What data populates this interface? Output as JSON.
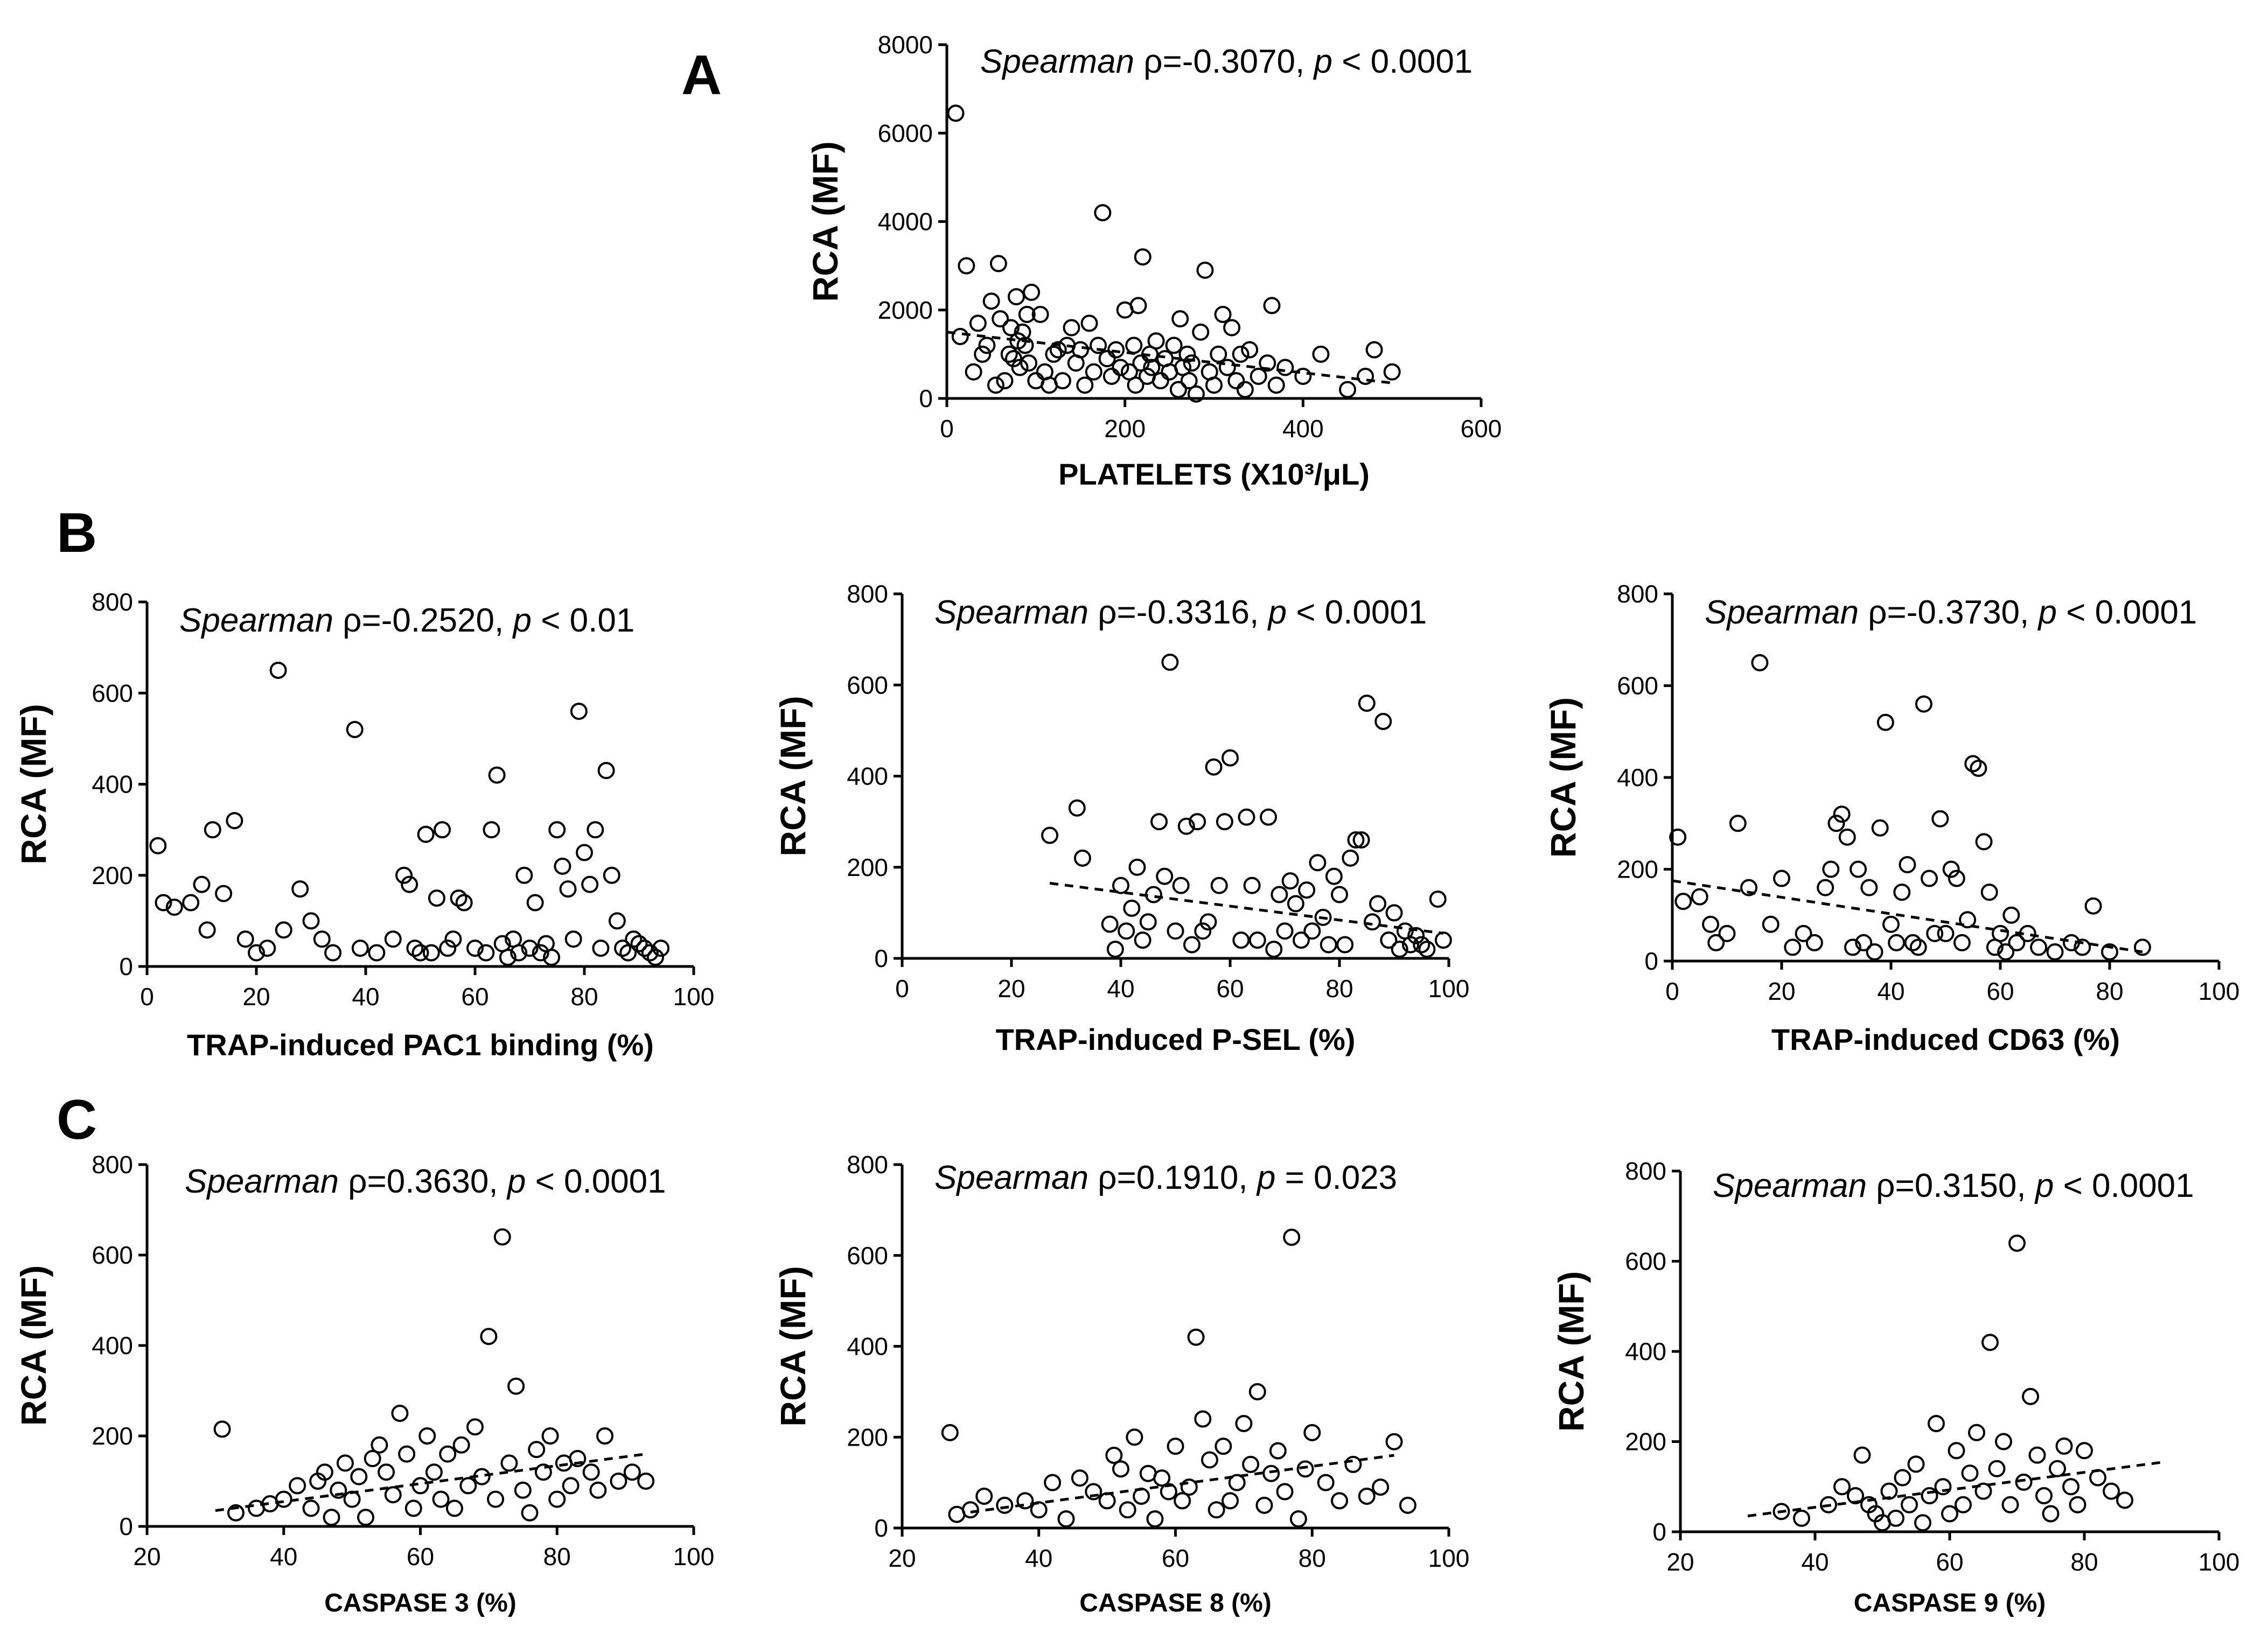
{
  "panel_labels": [
    "A",
    "B",
    "C"
  ],
  "chart_data": [
    {
      "type": "scatter",
      "title": "",
      "xlabel": "PLATELETS (X10³/μL)",
      "ylabel": "RCA (MF)",
      "xlim": [
        0,
        600
      ],
      "ylim": [
        0,
        8000
      ],
      "xticks": [
        0,
        200,
        400,
        600
      ],
      "yticks": [
        0,
        2000,
        4000,
        6000,
        8000
      ],
      "stat": {
        "method": "Spearman",
        "rho": "ρ=-0.3070",
        "sep": ", ",
        "p_label": "p",
        "p_value": " < 0.0001"
      },
      "trend": {
        "x": [
          0,
          500
        ],
        "y": [
          1500,
          350
        ]
      },
      "x": [
        10,
        15,
        22,
        30,
        35,
        40,
        45,
        50,
        55,
        58,
        60,
        65,
        70,
        72,
        75,
        78,
        80,
        82,
        85,
        88,
        90,
        92,
        95,
        100,
        105,
        110,
        115,
        120,
        125,
        130,
        135,
        140,
        145,
        150,
        155,
        160,
        165,
        170,
        175,
        180,
        185,
        190,
        195,
        200,
        205,
        210,
        212,
        215,
        218,
        220,
        225,
        228,
        230,
        235,
        240,
        245,
        250,
        255,
        260,
        262,
        265,
        270,
        272,
        275,
        280,
        285,
        290,
        295,
        300,
        305,
        310,
        315,
        320,
        325,
        330,
        335,
        340,
        350,
        360,
        365,
        370,
        380,
        400,
        420,
        450,
        470,
        480,
        500
      ],
      "y": [
        6450,
        1400,
        3000,
        600,
        1700,
        1000,
        1200,
        2200,
        300,
        3050,
        1800,
        400,
        1000,
        1600,
        900,
        2300,
        1300,
        700,
        1500,
        1200,
        1900,
        800,
        2400,
        400,
        1900,
        600,
        300,
        1000,
        1100,
        400,
        1200,
        1600,
        800,
        1100,
        300,
        1700,
        600,
        1200,
        4200,
        900,
        500,
        1100,
        700,
        2000,
        600,
        1200,
        300,
        2100,
        800,
        3200,
        500,
        1000,
        700,
        1300,
        400,
        900,
        600,
        1200,
        200,
        1800,
        700,
        1000,
        400,
        800,
        100,
        1500,
        2900,
        600,
        300,
        1000,
        1900,
        700,
        1600,
        400,
        1000,
        200,
        1100,
        500,
        800,
        2100,
        300,
        700,
        500,
        1000,
        200,
        500,
        1100,
        600
      ]
    },
    {
      "type": "scatter",
      "title": "",
      "xlabel": "TRAP-induced PAC1 binding (%)",
      "ylabel": "RCA (MF)",
      "xlim": [
        0,
        100
      ],
      "ylim": [
        0,
        800
      ],
      "xticks": [
        0,
        20,
        40,
        60,
        80,
        100
      ],
      "yticks": [
        0,
        200,
        400,
        600,
        800
      ],
      "stat": {
        "method": "Spearman",
        "rho": "ρ=-0.2520",
        "sep": ", ",
        "p_label": "p",
        "p_value": " < 0.01"
      },
      "trend": null,
      "x": [
        2,
        3,
        5,
        8,
        10,
        11,
        12,
        14,
        16,
        18,
        20,
        22,
        24,
        25,
        28,
        30,
        32,
        34,
        38,
        39,
        42,
        45,
        47,
        48,
        49,
        50,
        51,
        52,
        53,
        54,
        55,
        56,
        57,
        58,
        60,
        62,
        63,
        64,
        65,
        66,
        67,
        68,
        69,
        70,
        71,
        72,
        73,
        74,
        75,
        76,
        77,
        78,
        79,
        80,
        81,
        82,
        83,
        84,
        85,
        86,
        87,
        88,
        89,
        90,
        91,
        92,
        93,
        94
      ],
      "y": [
        265,
        140,
        130,
        140,
        180,
        80,
        300,
        160,
        320,
        60,
        30,
        40,
        650,
        80,
        170,
        100,
        60,
        30,
        520,
        40,
        30,
        60,
        200,
        180,
        40,
        30,
        290,
        30,
        150,
        300,
        40,
        60,
        150,
        140,
        40,
        30,
        300,
        420,
        50,
        20,
        60,
        30,
        200,
        40,
        140,
        30,
        50,
        20,
        300,
        220,
        170,
        60,
        560,
        250,
        180,
        300,
        40,
        430,
        200,
        100,
        40,
        30,
        60,
        50,
        40,
        30,
        20,
        40
      ]
    },
    {
      "type": "scatter",
      "title": "",
      "xlabel": "TRAP-induced P-SEL (%)",
      "ylabel": "RCA (MF)",
      "xlim": [
        0,
        100
      ],
      "ylim": [
        0,
        800
      ],
      "xticks": [
        0,
        20,
        40,
        60,
        80,
        100
      ],
      "yticks": [
        0,
        200,
        400,
        600,
        800
      ],
      "stat": {
        "method": "Spearman",
        "rho": "ρ=-0.3316",
        "sep": ", ",
        "p_label": "p",
        "p_value": " < 0.0001"
      },
      "trend": {
        "x": [
          27,
          99
        ],
        "y": [
          165,
          55
        ]
      },
      "x": [
        27,
        32,
        33,
        38,
        39,
        40,
        41,
        42,
        43,
        44,
        45,
        46,
        47,
        48,
        49,
        50,
        51,
        52,
        53,
        54,
        55,
        56,
        57,
        58,
        59,
        60,
        62,
        63,
        64,
        65,
        67,
        68,
        69,
        70,
        71,
        72,
        73,
        74,
        75,
        76,
        77,
        78,
        79,
        80,
        81,
        82,
        83,
        84,
        85,
        86,
        87,
        88,
        89,
        90,
        91,
        92,
        93,
        94,
        95,
        96,
        98,
        99
      ],
      "y": [
        270,
        330,
        220,
        75,
        20,
        160,
        60,
        110,
        200,
        40,
        80,
        140,
        300,
        180,
        650,
        60,
        160,
        290,
        30,
        300,
        60,
        80,
        420,
        160,
        300,
        440,
        40,
        310,
        160,
        40,
        310,
        20,
        140,
        60,
        170,
        120,
        40,
        150,
        60,
        210,
        90,
        30,
        180,
        140,
        30,
        220,
        260,
        260,
        560,
        80,
        120,
        520,
        40,
        100,
        20,
        60,
        30,
        50,
        30,
        20,
        130,
        40
      ]
    },
    {
      "type": "scatter",
      "title": "",
      "xlabel": "TRAP-induced CD63 (%)",
      "ylabel": "RCA (MF)",
      "xlim": [
        0,
        100
      ],
      "ylim": [
        0,
        800
      ],
      "xticks": [
        0,
        20,
        40,
        60,
        80,
        100
      ],
      "yticks": [
        0,
        200,
        400,
        600,
        800
      ],
      "stat": {
        "method": "Spearman",
        "rho": "ρ=-0.3730",
        "sep": ", ",
        "p_label": "p",
        "p_value": " < 0.0001"
      },
      "trend": {
        "x": [
          0,
          86
        ],
        "y": [
          175,
          20
        ]
      },
      "x": [
        1,
        2,
        5,
        7,
        8,
        10,
        12,
        14,
        16,
        18,
        20,
        22,
        24,
        26,
        28,
        29,
        30,
        31,
        32,
        33,
        34,
        35,
        36,
        37,
        38,
        39,
        40,
        41,
        42,
        43,
        44,
        45,
        46,
        47,
        48,
        49,
        50,
        51,
        52,
        53,
        54,
        55,
        56,
        57,
        58,
        59,
        60,
        61,
        62,
        63,
        65,
        67,
        70,
        73,
        75,
        77,
        80,
        86
      ],
      "y": [
        270,
        130,
        140,
        80,
        40,
        60,
        300,
        160,
        650,
        80,
        180,
        30,
        60,
        40,
        160,
        200,
        300,
        320,
        270,
        30,
        200,
        40,
        160,
        20,
        290,
        520,
        80,
        40,
        150,
        210,
        40,
        30,
        560,
        180,
        60,
        310,
        60,
        200,
        180,
        40,
        90,
        430,
        420,
        260,
        150,
        30,
        60,
        20,
        100,
        40,
        60,
        30,
        20,
        40,
        30,
        120,
        20,
        30
      ]
    },
    {
      "type": "scatter",
      "title": "",
      "xlabel": "CASPASE 3 (%)",
      "ylabel": "RCA (MF)",
      "xlim": [
        20,
        100
      ],
      "ylim": [
        0,
        800
      ],
      "xticks": [
        20,
        40,
        60,
        80,
        100
      ],
      "yticks": [
        0,
        200,
        400,
        600,
        800
      ],
      "stat": {
        "method": "Spearman",
        "rho": "ρ=0.3630",
        "sep": ", ",
        "p_label": "p",
        "p_value": " < 0.0001"
      },
      "trend": {
        "x": [
          30,
          93
        ],
        "y": [
          35,
          160
        ]
      },
      "x": [
        31,
        33,
        36,
        38,
        40,
        42,
        44,
        45,
        46,
        47,
        48,
        49,
        50,
        51,
        52,
        53,
        54,
        55,
        56,
        57,
        58,
        59,
        60,
        61,
        62,
        63,
        64,
        65,
        66,
        67,
        68,
        69,
        70,
        71,
        72,
        73,
        74,
        75,
        76,
        77,
        78,
        79,
        80,
        81,
        82,
        83,
        85,
        86,
        87,
        89,
        91,
        93
      ],
      "y": [
        215,
        30,
        40,
        50,
        60,
        90,
        40,
        100,
        120,
        20,
        80,
        140,
        60,
        110,
        20,
        150,
        180,
        120,
        70,
        250,
        160,
        40,
        90,
        200,
        120,
        60,
        160,
        40,
        180,
        90,
        220,
        110,
        420,
        60,
        640,
        140,
        310,
        80,
        30,
        170,
        120,
        200,
        60,
        140,
        90,
        150,
        120,
        80,
        200,
        100,
        120,
        100
      ]
    },
    {
      "type": "scatter",
      "title": "",
      "xlabel": "CASPASE 8 (%)",
      "ylabel": "RCA (MF)",
      "xlim": [
        20,
        100
      ],
      "ylim": [
        0,
        800
      ],
      "xticks": [
        20,
        40,
        60,
        80,
        100
      ],
      "yticks": [
        0,
        200,
        400,
        600,
        800
      ],
      "stat": {
        "method": "Spearman",
        "rho": "ρ=0.1910",
        "sep": ", ",
        "p_label": "p",
        "p_value": " = 0.023"
      },
      "trend": {
        "x": [
          30,
          92
        ],
        "y": [
          35,
          160
        ]
      },
      "x": [
        27,
        28,
        30,
        32,
        35,
        38,
        40,
        42,
        44,
        46,
        48,
        50,
        51,
        52,
        53,
        54,
        55,
        56,
        57,
        58,
        59,
        60,
        61,
        62,
        63,
        64,
        65,
        66,
        67,
        68,
        69,
        70,
        71,
        72,
        73,
        74,
        75,
        76,
        77,
        78,
        79,
        80,
        82,
        84,
        86,
        88,
        90,
        92,
        94
      ],
      "y": [
        210,
        30,
        40,
        70,
        50,
        60,
        40,
        100,
        20,
        110,
        80,
        60,
        160,
        130,
        40,
        200,
        70,
        120,
        20,
        110,
        80,
        180,
        60,
        90,
        420,
        240,
        150,
        40,
        180,
        60,
        100,
        230,
        140,
        300,
        50,
        120,
        170,
        80,
        640,
        20,
        130,
        210,
        100,
        60,
        140,
        70,
        90,
        190,
        50
      ]
    },
    {
      "type": "scatter",
      "title": "",
      "xlabel": "CASPASE 9 (%)",
      "ylabel": "RCA (MF)",
      "xlim": [
        20,
        100
      ],
      "ylim": [
        0,
        800
      ],
      "xticks": [
        20,
        40,
        60,
        80,
        100
      ],
      "yticks": [
        0,
        200,
        400,
        600,
        800
      ],
      "stat": {
        "method": "Spearman",
        "rho": "ρ=0.3150",
        "sep": ", ",
        "p_label": "p",
        "p_value": " < 0.0001"
      },
      "trend": {
        "x": [
          30,
          92
        ],
        "y": [
          35,
          155
        ]
      },
      "x": [
        35,
        38,
        42,
        44,
        46,
        47,
        48,
        49,
        50,
        51,
        52,
        53,
        54,
        55,
        56,
        57,
        58,
        59,
        60,
        61,
        62,
        63,
        64,
        65,
        66,
        67,
        68,
        69,
        70,
        71,
        72,
        73,
        74,
        75,
        76,
        77,
        78,
        79,
        80,
        82,
        84,
        86
      ],
      "y": [
        45,
        30,
        60,
        100,
        80,
        170,
        60,
        40,
        20,
        90,
        30,
        120,
        60,
        150,
        20,
        80,
        240,
        100,
        40,
        180,
        60,
        130,
        220,
        90,
        420,
        140,
        200,
        60,
        640,
        110,
        300,
        170,
        80,
        40,
        140,
        190,
        100,
        60,
        180,
        120,
        90,
        70
      ]
    }
  ]
}
